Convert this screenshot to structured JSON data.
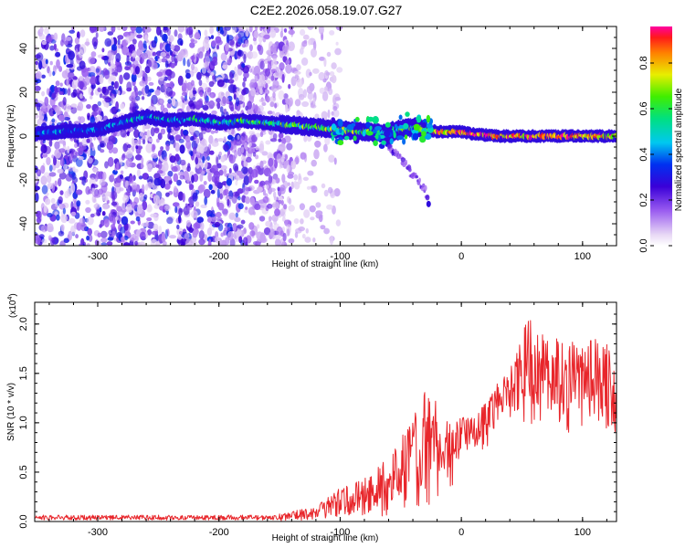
{
  "title": "C2E2.2026.058.19.07.G27",
  "chart_data": [
    {
      "type": "heatmap",
      "title": "C2E2.2026.058.19.07.G27",
      "xlabel": "Height of straight line (km)",
      "ylabel": "Frequency (Hz)",
      "xlim": [
        -352,
        128
      ],
      "ylim": [
        -50,
        50
      ],
      "xticks": [
        -300,
        -200,
        -100,
        0,
        100
      ],
      "xtick_labels": [
        "-300",
        "-200",
        "-100",
        "0",
        "100"
      ],
      "yticks": [
        -40,
        -20,
        0,
        20,
        40
      ],
      "ytick_labels": [
        "-40",
        "-20",
        "0",
        "20",
        "40"
      ],
      "colorbar": {
        "label": "Normalized spectral amplitude",
        "range": [
          0.0,
          0.96
        ],
        "ticks": [
          0.0,
          0.2,
          0.4,
          0.6,
          0.8
        ],
        "tick_labels": [
          "0.0",
          "0.2",
          "0.4",
          "0.6",
          "0.8"
        ]
      },
      "noise_region_x": [
        -352,
        -140
      ],
      "ridge": [
        {
          "x": -350,
          "freq": 1,
          "amp": 0.3
        },
        {
          "x": -330,
          "freq": 2,
          "amp": 0.35
        },
        {
          "x": -300,
          "freq": 3,
          "amp": 0.3
        },
        {
          "x": -260,
          "freq": 9,
          "amp": 0.45
        },
        {
          "x": -240,
          "freq": 7,
          "amp": 0.4
        },
        {
          "x": -220,
          "freq": 8,
          "amp": 0.45
        },
        {
          "x": -200,
          "freq": 6,
          "amp": 0.5
        },
        {
          "x": -180,
          "freq": 7,
          "amp": 0.55
        },
        {
          "x": -160,
          "freq": 6,
          "amp": 0.55
        },
        {
          "x": -140,
          "freq": 5,
          "amp": 0.55
        },
        {
          "x": -120,
          "freq": 4,
          "amp": 0.6
        },
        {
          "x": -100,
          "freq": 3,
          "amp": 0.6
        },
        {
          "x": -80,
          "freq": 2,
          "amp": 0.6
        },
        {
          "x": -60,
          "freq": 1,
          "amp": 0.6
        },
        {
          "x": -45,
          "freq": 4,
          "amp": 0.55
        },
        {
          "x": -30,
          "freq": 3,
          "amp": 0.6
        },
        {
          "x": -20,
          "freq": 2,
          "amp": 0.85
        },
        {
          "x": -10,
          "freq": 2,
          "amp": 0.8
        },
        {
          "x": 0,
          "freq": 2,
          "amp": 0.9
        },
        {
          "x": 10,
          "freq": 1,
          "amp": 0.9
        },
        {
          "x": 30,
          "freq": 0,
          "amp": 0.85
        },
        {
          "x": 60,
          "freq": 0,
          "amp": 0.85
        },
        {
          "x": 90,
          "freq": 0,
          "amp": 0.85
        },
        {
          "x": 128,
          "freq": 0,
          "amp": 0.8
        }
      ],
      "tail": [
        {
          "x": -60,
          "freq": -5
        },
        {
          "x": -50,
          "freq": -10
        },
        {
          "x": -40,
          "freq": -18
        },
        {
          "x": -30,
          "freq": -24
        },
        {
          "x": -27,
          "freq": -31
        }
      ]
    },
    {
      "type": "line",
      "xlabel": "Height of straight line (km)",
      "ylabel": "SNR (10 * v/v)",
      "y_multiplier_label": "(x10",
      "y_multiplier_exp": "4",
      "color": "#e8262b",
      "xlim": [
        -352,
        128
      ],
      "ylim": [
        0,
        2.22
      ],
      "xticks": [
        -300,
        -200,
        -100,
        0,
        100
      ],
      "xtick_labels": [
        "-300",
        "-200",
        "-100",
        "0",
        "100"
      ],
      "yticks": [
        0.0,
        0.5,
        1.0,
        1.5,
        2.0
      ],
      "ytick_labels": [
        "0.0",
        "0.5",
        "1.0",
        "1.5",
        "2.0"
      ],
      "envelope": {
        "x": [
          -352,
          -150,
          -120,
          -100,
          -80,
          -60,
          -50,
          -40,
          -30,
          -20,
          -10,
          0,
          10,
          20,
          30,
          40,
          50,
          55,
          60,
          80,
          100,
          110,
          120,
          128
        ],
        "low": [
          0.0,
          0.0,
          0.02,
          0.05,
          0.05,
          0.05,
          0.1,
          0.1,
          0.1,
          0.1,
          0.1,
          0.7,
          0.7,
          0.7,
          1.0,
          1.0,
          1.0,
          1.0,
          0.9,
          0.9,
          0.9,
          0.9,
          0.9,
          0.9
        ],
        "high": [
          0.08,
          0.08,
          0.15,
          0.35,
          0.45,
          0.65,
          0.85,
          1.05,
          1.4,
          1.25,
          1.0,
          1.1,
          1.05,
          1.2,
          1.45,
          1.55,
          1.85,
          2.15,
          1.95,
          1.9,
          1.8,
          1.85,
          1.8,
          1.7
        ]
      }
    }
  ]
}
